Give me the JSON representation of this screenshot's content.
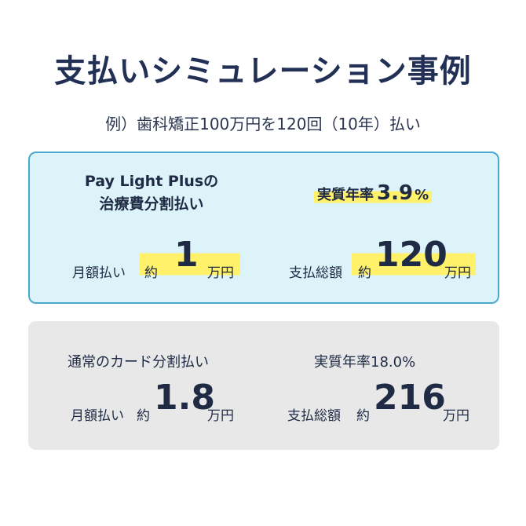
{
  "title": "支払いシミュレーション事例",
  "subtitle": "例）歯科矯正100万円を120回（10年）払い",
  "plus": {
    "name_line1": "Pay Light Plusの",
    "name_line2": "治療費分割払い",
    "rate_label": "実質年率",
    "rate_value": "3.9",
    "rate_unit": "%",
    "monthly_label": "月額払い",
    "approx": "約",
    "monthly_value": "1",
    "unit": "万円",
    "total_label": "支払総額",
    "total_value": "120"
  },
  "normal": {
    "name": "通常のカード分割払い",
    "rate_text": "実質年率18.0%",
    "monthly_label": "月額払い",
    "approx": "約",
    "monthly_value": "1.8",
    "unit": "万円",
    "total_label": "支払総額",
    "total_value": "216"
  },
  "colors": {
    "title": "#223055",
    "plus_bg": "#ddf3fa",
    "plus_border": "#4aa9cf",
    "normal_bg": "#e8e8e8",
    "highlight": "#fff16a"
  }
}
